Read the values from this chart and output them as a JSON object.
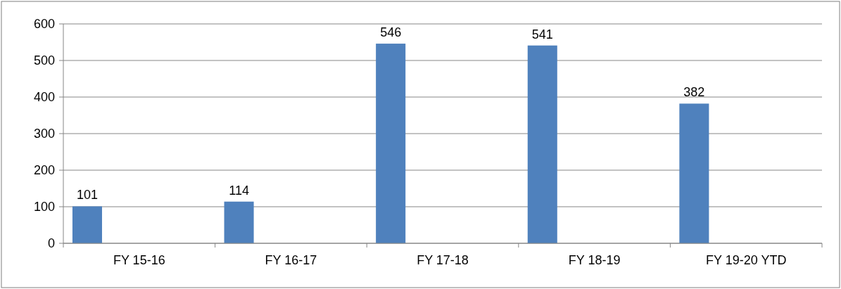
{
  "chart_data": {
    "type": "bar",
    "categories": [
      "FY 15-16",
      "FY 16-17",
      "FY 17-18",
      "FY 18-19",
      "FY 19-20 YTD"
    ],
    "values": [
      101,
      114,
      546,
      541,
      382
    ],
    "color": "#4f81bd",
    "ylim": [
      0,
      600
    ],
    "yticks": [
      0,
      100,
      200,
      300,
      400,
      500,
      600
    ],
    "grid": "y",
    "data_labels": true
  }
}
